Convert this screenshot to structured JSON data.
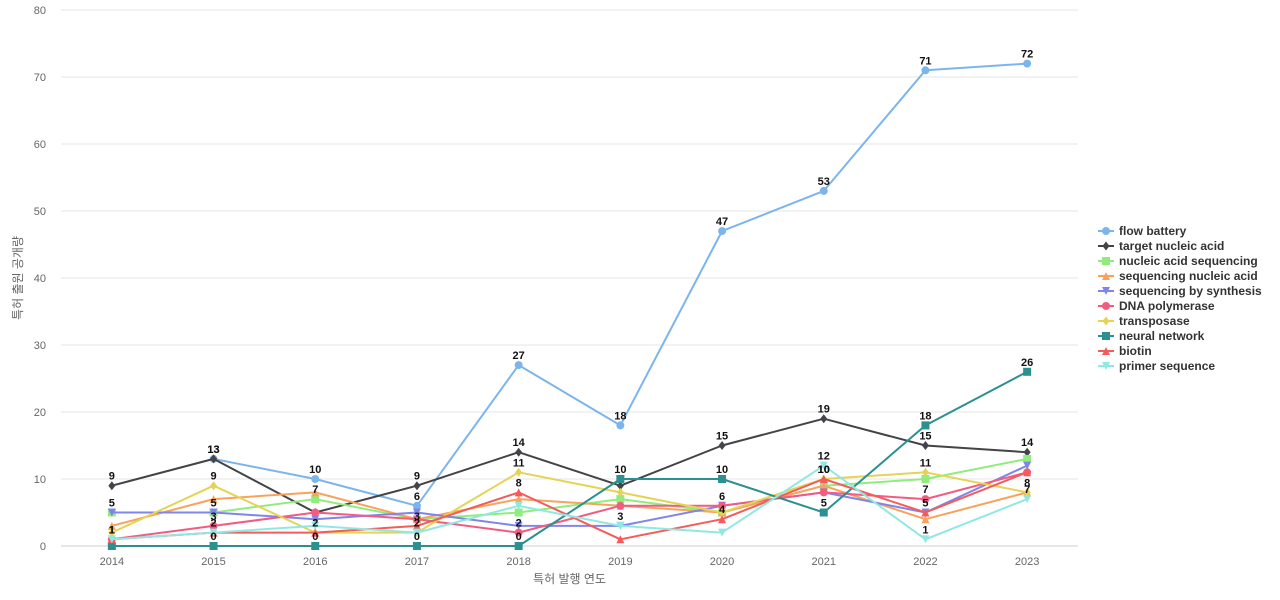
{
  "chart_data": {
    "type": "line",
    "xlabel": "특허 발행 연도",
    "ylabel": "특허 출원 공개량",
    "x": [
      2014,
      2015,
      2016,
      2017,
      2018,
      2019,
      2020,
      2021,
      2022,
      2023
    ],
    "ylim": [
      0,
      80
    ],
    "yticks": [
      0,
      10,
      20,
      30,
      40,
      50,
      60,
      70,
      80
    ],
    "grid": true,
    "legend_position": "right",
    "series": [
      {
        "name": "flow battery",
        "color": "#7cb5ec",
        "marker": "circle",
        "values": [
          null,
          13,
          10,
          6,
          27,
          18,
          47,
          53,
          71,
          72
        ]
      },
      {
        "name": "target nucleic acid",
        "color": "#434348",
        "marker": "diamond",
        "values": [
          9,
          13,
          5,
          9,
          14,
          9,
          15,
          19,
          15,
          14
        ]
      },
      {
        "name": "nucleic acid sequencing",
        "color": "#90ed7d",
        "marker": "square",
        "values": [
          5,
          5,
          7,
          4,
          5,
          7,
          5,
          9,
          10,
          13
        ]
      },
      {
        "name": "sequencing nucleic acid",
        "color": "#f7a35c",
        "marker": "triangle",
        "values": [
          3,
          7,
          8,
          4,
          7,
          6,
          5,
          9,
          4,
          8
        ]
      },
      {
        "name": "sequencing by synthesis",
        "color": "#8085e9",
        "marker": "triangle-down",
        "values": [
          5,
          5,
          4,
          5,
          3,
          3,
          6,
          8,
          5,
          12
        ]
      },
      {
        "name": "DNA polymerase",
        "color": "#f15c80",
        "marker": "circle",
        "values": [
          1,
          3,
          5,
          4,
          2,
          6,
          6,
          8,
          7,
          11
        ]
      },
      {
        "name": "transposase",
        "color": "#e4d354",
        "marker": "diamond",
        "values": [
          2,
          9,
          2,
          2,
          11,
          8,
          5,
          10,
          11,
          8
        ]
      },
      {
        "name": "neural network",
        "color": "#2b908f",
        "marker": "square",
        "values": [
          0,
          0,
          0,
          0,
          0,
          10,
          10,
          5,
          18,
          26
        ]
      },
      {
        "name": "biotin",
        "color": "#f45b5b",
        "marker": "triangle",
        "values": [
          1,
          2,
          2,
          3,
          8,
          1,
          4,
          10,
          5,
          11
        ]
      },
      {
        "name": "primer sequence",
        "color": "#91e8e1",
        "marker": "triangle-down",
        "values": [
          1,
          2,
          3,
          2,
          6,
          3,
          2,
          12,
          1,
          7
        ]
      }
    ],
    "data_labels": [
      {
        "series": 0,
        "points": [
          1,
          2,
          3,
          4,
          5,
          6,
          7,
          8,
          9
        ]
      },
      {
        "series": 1,
        "points": [
          0,
          1,
          3,
          4,
          6,
          7,
          8,
          9
        ]
      },
      {
        "series": 2,
        "points": [
          0,
          2
        ]
      },
      {
        "series": 3,
        "points": []
      },
      {
        "series": 4,
        "points": [
          1,
          8
        ]
      },
      {
        "series": 5,
        "points": [
          1,
          4,
          6,
          8
        ]
      },
      {
        "series": 6,
        "points": [
          1,
          4,
          7,
          8,
          9
        ]
      },
      {
        "series": 7,
        "points": [
          1,
          2,
          3,
          4,
          5,
          6,
          7,
          8,
          9
        ]
      },
      {
        "series": 8,
        "points": [
          0,
          2,
          3,
          4,
          6,
          7
        ]
      },
      {
        "series": 9,
        "points": [
          0,
          1,
          3,
          5,
          7,
          8,
          9
        ]
      }
    ]
  }
}
